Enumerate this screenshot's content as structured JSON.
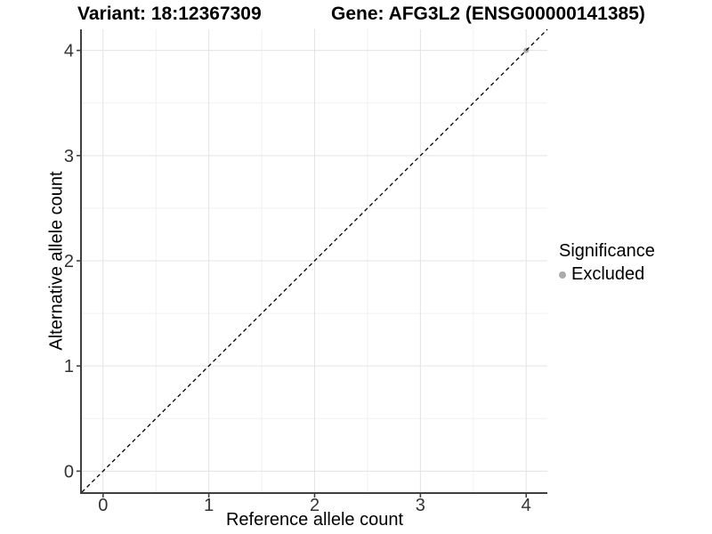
{
  "titles": {
    "variant": "Variant: 18:12367309",
    "gene": "Gene: AFG3L2 (ENSG00000141385)"
  },
  "axes": {
    "x": {
      "label": "Reference allele count",
      "tick_labels": [
        "0",
        "1",
        "2",
        "3",
        "4"
      ]
    },
    "y": {
      "label": "Alternative allele count",
      "tick_labels": [
        "0",
        "1",
        "2",
        "3",
        "4"
      ]
    }
  },
  "legend": {
    "title": "Significance",
    "items": [
      {
        "label": "Excluded",
        "color": "#ababab",
        "marker": "dot-icon"
      }
    ]
  },
  "chart_data": {
    "type": "scatter",
    "title": "Variant: 18:12367309    Gene: AFG3L2 (ENSG00000141385)",
    "xlabel": "Reference allele count",
    "ylabel": "Alternative allele count",
    "xlim": [
      -0.2,
      4.2
    ],
    "ylim": [
      -0.2,
      4.2
    ],
    "x_ticks": [
      0,
      1,
      2,
      3,
      4
    ],
    "y_ticks": [
      0,
      1,
      2,
      3,
      4
    ],
    "x_minor_ticks": [
      0.5,
      1.5,
      2.5,
      3.5
    ],
    "y_minor_ticks": [
      0.5,
      1.5,
      2.5,
      3.5
    ],
    "grid": "major and minor, light grey on white background",
    "legend_position": "right",
    "series": [
      {
        "name": "Excluded",
        "type": "scatter",
        "color": "#ababab",
        "points": [
          {
            "x": 4,
            "y": 4
          }
        ]
      }
    ],
    "reference_line": {
      "slope": 1,
      "intercept": 0,
      "style": "dashed",
      "color": "#000000",
      "note": "identity line y = x spanning full panel"
    }
  },
  "colors": {
    "background": "#ffffff",
    "grid_major": "#e3e3e3",
    "grid_minor": "#f1f1f1",
    "axis_line": "#404040",
    "tick_text": "#333333",
    "text": "#000000",
    "excluded": "#ababab"
  }
}
